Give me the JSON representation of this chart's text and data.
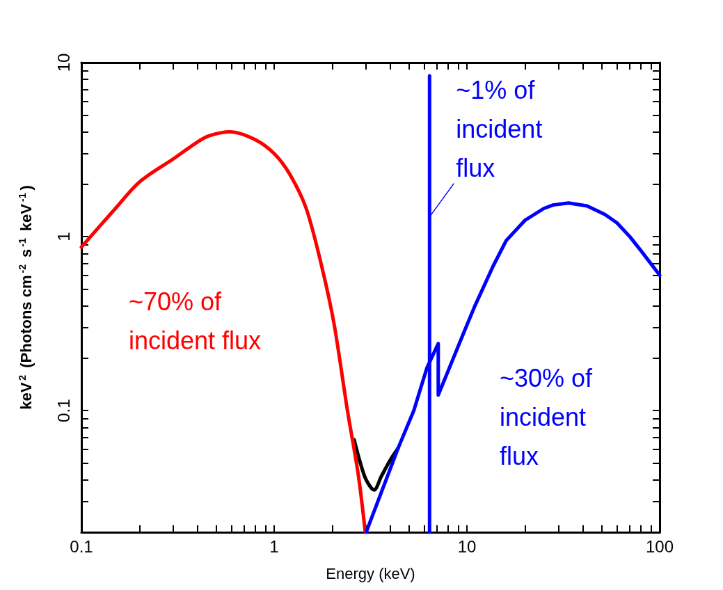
{
  "chart_data": {
    "type": "line",
    "xlabel": "Energy (keV)",
    "ylabel": "keV$^{2}$ (Photons cm$^{-2}$ s$^{-1}$ keV$^{-1}$)",
    "log": "xy",
    "grid": false,
    "marker": "none",
    "line_style": "solid",
    "xlim": [
      0.1,
      100
    ],
    "ylim": [
      0.02,
      10
    ],
    "xticks": [
      0.1,
      {
        "value": 0.2,
        "label": null
      },
      {
        "value": 0.3,
        "label": null
      },
      {
        "value": 0.4,
        "label": null
      },
      {
        "value": 0.5,
        "label": null
      },
      {
        "value": 0.6,
        "label": null
      },
      {
        "value": 0.7,
        "label": null
      },
      {
        "value": 0.8,
        "label": null
      },
      {
        "value": 0.9,
        "label": null
      },
      1,
      {
        "value": 2,
        "label": null
      },
      {
        "value": 3,
        "label": null
      },
      {
        "value": 4,
        "label": null
      },
      {
        "value": 5,
        "label": null
      },
      {
        "value": 6,
        "label": null
      },
      {
        "value": 7,
        "label": null
      },
      {
        "value": 8,
        "label": null
      },
      {
        "value": 9,
        "label": null
      },
      10,
      {
        "value": 20,
        "label": null
      },
      {
        "value": 30,
        "label": null
      },
      {
        "value": 40,
        "label": null
      },
      {
        "value": 50,
        "label": null
      },
      {
        "value": 60,
        "label": null
      },
      {
        "value": 70,
        "label": null
      },
      {
        "value": 80,
        "label": null
      },
      {
        "value": 90,
        "label": null
      },
      100
    ],
    "yticks": [
      {
        "value": 0.02,
        "label": null
      },
      {
        "value": 0.03,
        "label": null
      },
      {
        "value": 0.04,
        "label": null
      },
      {
        "value": 0.05,
        "label": null
      },
      {
        "value": 0.06,
        "label": null
      },
      {
        "value": 0.07,
        "label": null
      },
      {
        "value": 0.08,
        "label": null
      },
      {
        "value": 0.09,
        "label": null
      },
      0.1,
      {
        "value": 0.2,
        "label": null
      },
      {
        "value": 0.3,
        "label": null
      },
      {
        "value": 0.4,
        "label": null
      },
      {
        "value": 0.5,
        "label": null
      },
      {
        "value": 0.6,
        "label": null
      },
      {
        "value": 0.7,
        "label": null
      },
      {
        "value": 0.8,
        "label": null
      },
      {
        "value": 0.9,
        "label": null
      },
      1,
      {
        "value": 2,
        "label": null
      },
      {
        "value": 3,
        "label": null
      },
      {
        "value": 4,
        "label": null
      },
      {
        "value": 5,
        "label": null
      },
      {
        "value": 6,
        "label": null
      },
      {
        "value": 7,
        "label": null
      },
      {
        "value": 8,
        "label": null
      },
      {
        "value": 9,
        "label": null
      },
      10
    ],
    "annotations": [
      "~70% of\nincident flux",
      {
        "text": "~1% of\nincident\nflux",
        "x": 6.4,
        "y": 1.3
      },
      "~30% of\nincident\nflux"
    ],
    "series": [
      {
        "color": "#000000",
        "x": [
          2.6,
          2.8,
          3.0,
          3.3,
          3.6,
          4.0,
          4.4
        ],
        "values": [
          0.068,
          0.05,
          0.04,
          0.035,
          0.042,
          0.052,
          0.061
        ]
      },
      {
        "color": "#ff0000",
        "x": [
          0.1,
          0.15,
          0.2,
          0.3,
          0.4,
          0.46,
          0.59,
          0.8,
          1,
          1.2,
          1.46,
          1.73,
          2.04,
          2.4,
          2.73,
          2.97
        ],
        "values": [
          0.87,
          1.45,
          2.06,
          2.8,
          3.5,
          3.8,
          4.0,
          3.6,
          3.0,
          2.3,
          1.47,
          0.74,
          0.32,
          0.1,
          0.043,
          0.02
        ]
      },
      {
        "color": "#0000ff",
        "x": [
          6.4,
          6.4
        ],
        "values": [
          0.02,
          8.4
        ]
      },
      {
        "color": "#0000ff",
        "x": [
          3.0,
          4.4,
          5.3,
          6.2,
          7.1,
          7.1,
          8.5,
          9.75,
          11,
          13.7,
          16,
          20,
          25,
          28,
          33.7,
          42,
          52,
          60,
          70,
          80,
          100
        ],
        "values": [
          0.02,
          0.061,
          0.1,
          0.176,
          0.243,
          0.123,
          0.2,
          0.29,
          0.4,
          0.68,
          0.95,
          1.24,
          1.45,
          1.52,
          1.56,
          1.5,
          1.34,
          1.2,
          1.0,
          0.83,
          0.6
        ]
      }
    ]
  }
}
